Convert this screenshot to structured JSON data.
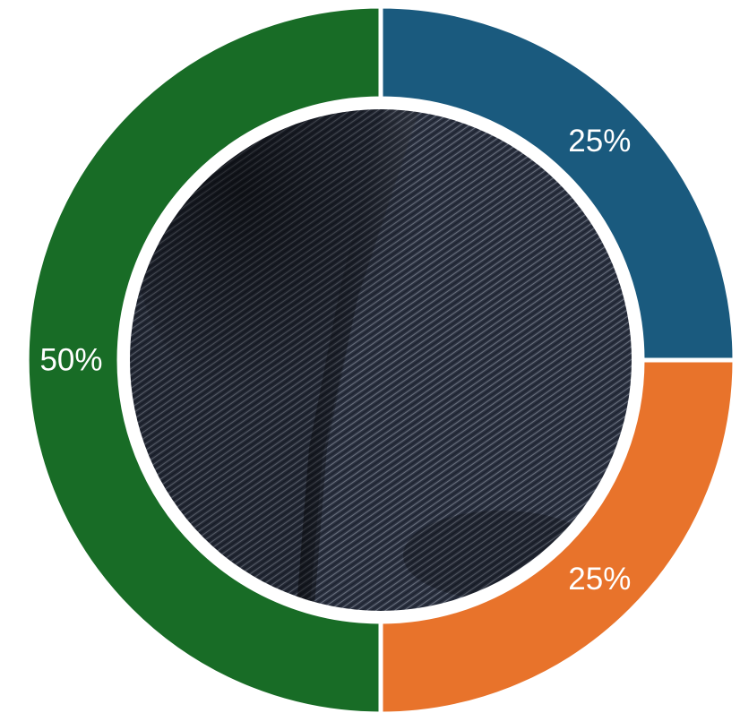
{
  "chart_data": {
    "type": "pie",
    "variant": "donut",
    "center_image": "denim-fabric-photo",
    "slices": [
      {
        "value": 25,
        "label": "25%",
        "color": "#1a5a7e"
      },
      {
        "value": 25,
        "label": "25%",
        "color": "#e8732b"
      },
      {
        "value": 50,
        "label": "50%",
        "color": "#186c26"
      }
    ]
  }
}
